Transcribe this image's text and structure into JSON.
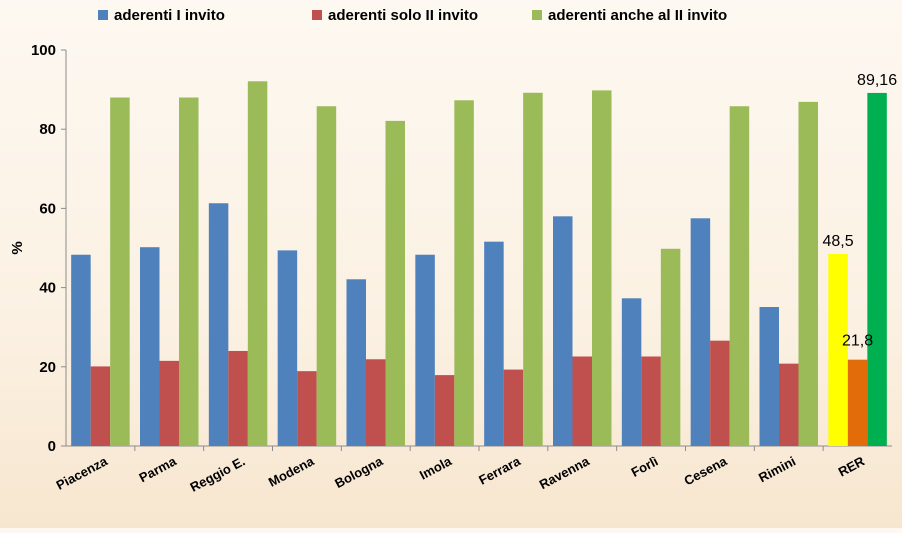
{
  "chart_data": {
    "type": "bar",
    "ylabel": "%",
    "ylim": [
      0,
      100
    ],
    "yticks": [
      0,
      20,
      40,
      60,
      80,
      100
    ],
    "grid": false,
    "legend_position": "top",
    "categories": [
      "Piacenza",
      "Parma",
      "Reggio E.",
      "Modena",
      "Bologna",
      "Imola",
      "Ferrara",
      "Ravenna",
      "Forlì",
      "Cesena",
      "Rimini",
      "RER"
    ],
    "series": [
      {
        "name": "aderenti I invito",
        "color": "#4f81bd",
        "values": [
          48.3,
          50.2,
          61.3,
          49.4,
          42.1,
          48.3,
          51.6,
          58.0,
          37.3,
          57.5,
          35.1,
          48.5
        ]
      },
      {
        "name": "aderenti solo II invito",
        "color": "#c0504d",
        "values": [
          20.1,
          21.5,
          24.0,
          18.9,
          21.9,
          17.9,
          19.3,
          22.6,
          22.6,
          26.6,
          20.8,
          21.8
        ]
      },
      {
        "name": "aderenti anche al II invito",
        "color": "#9bbb59",
        "values": [
          88.0,
          88.0,
          92.1,
          85.8,
          82.1,
          87.3,
          89.2,
          89.8,
          49.8,
          85.8,
          86.9,
          89.16
        ]
      }
    ],
    "highlight": {
      "category": "RER",
      "colors": [
        "#ffff00",
        "#e36c0a",
        "#00b050"
      ],
      "labels": [
        "48,5",
        "21,8",
        "89,16"
      ]
    }
  }
}
